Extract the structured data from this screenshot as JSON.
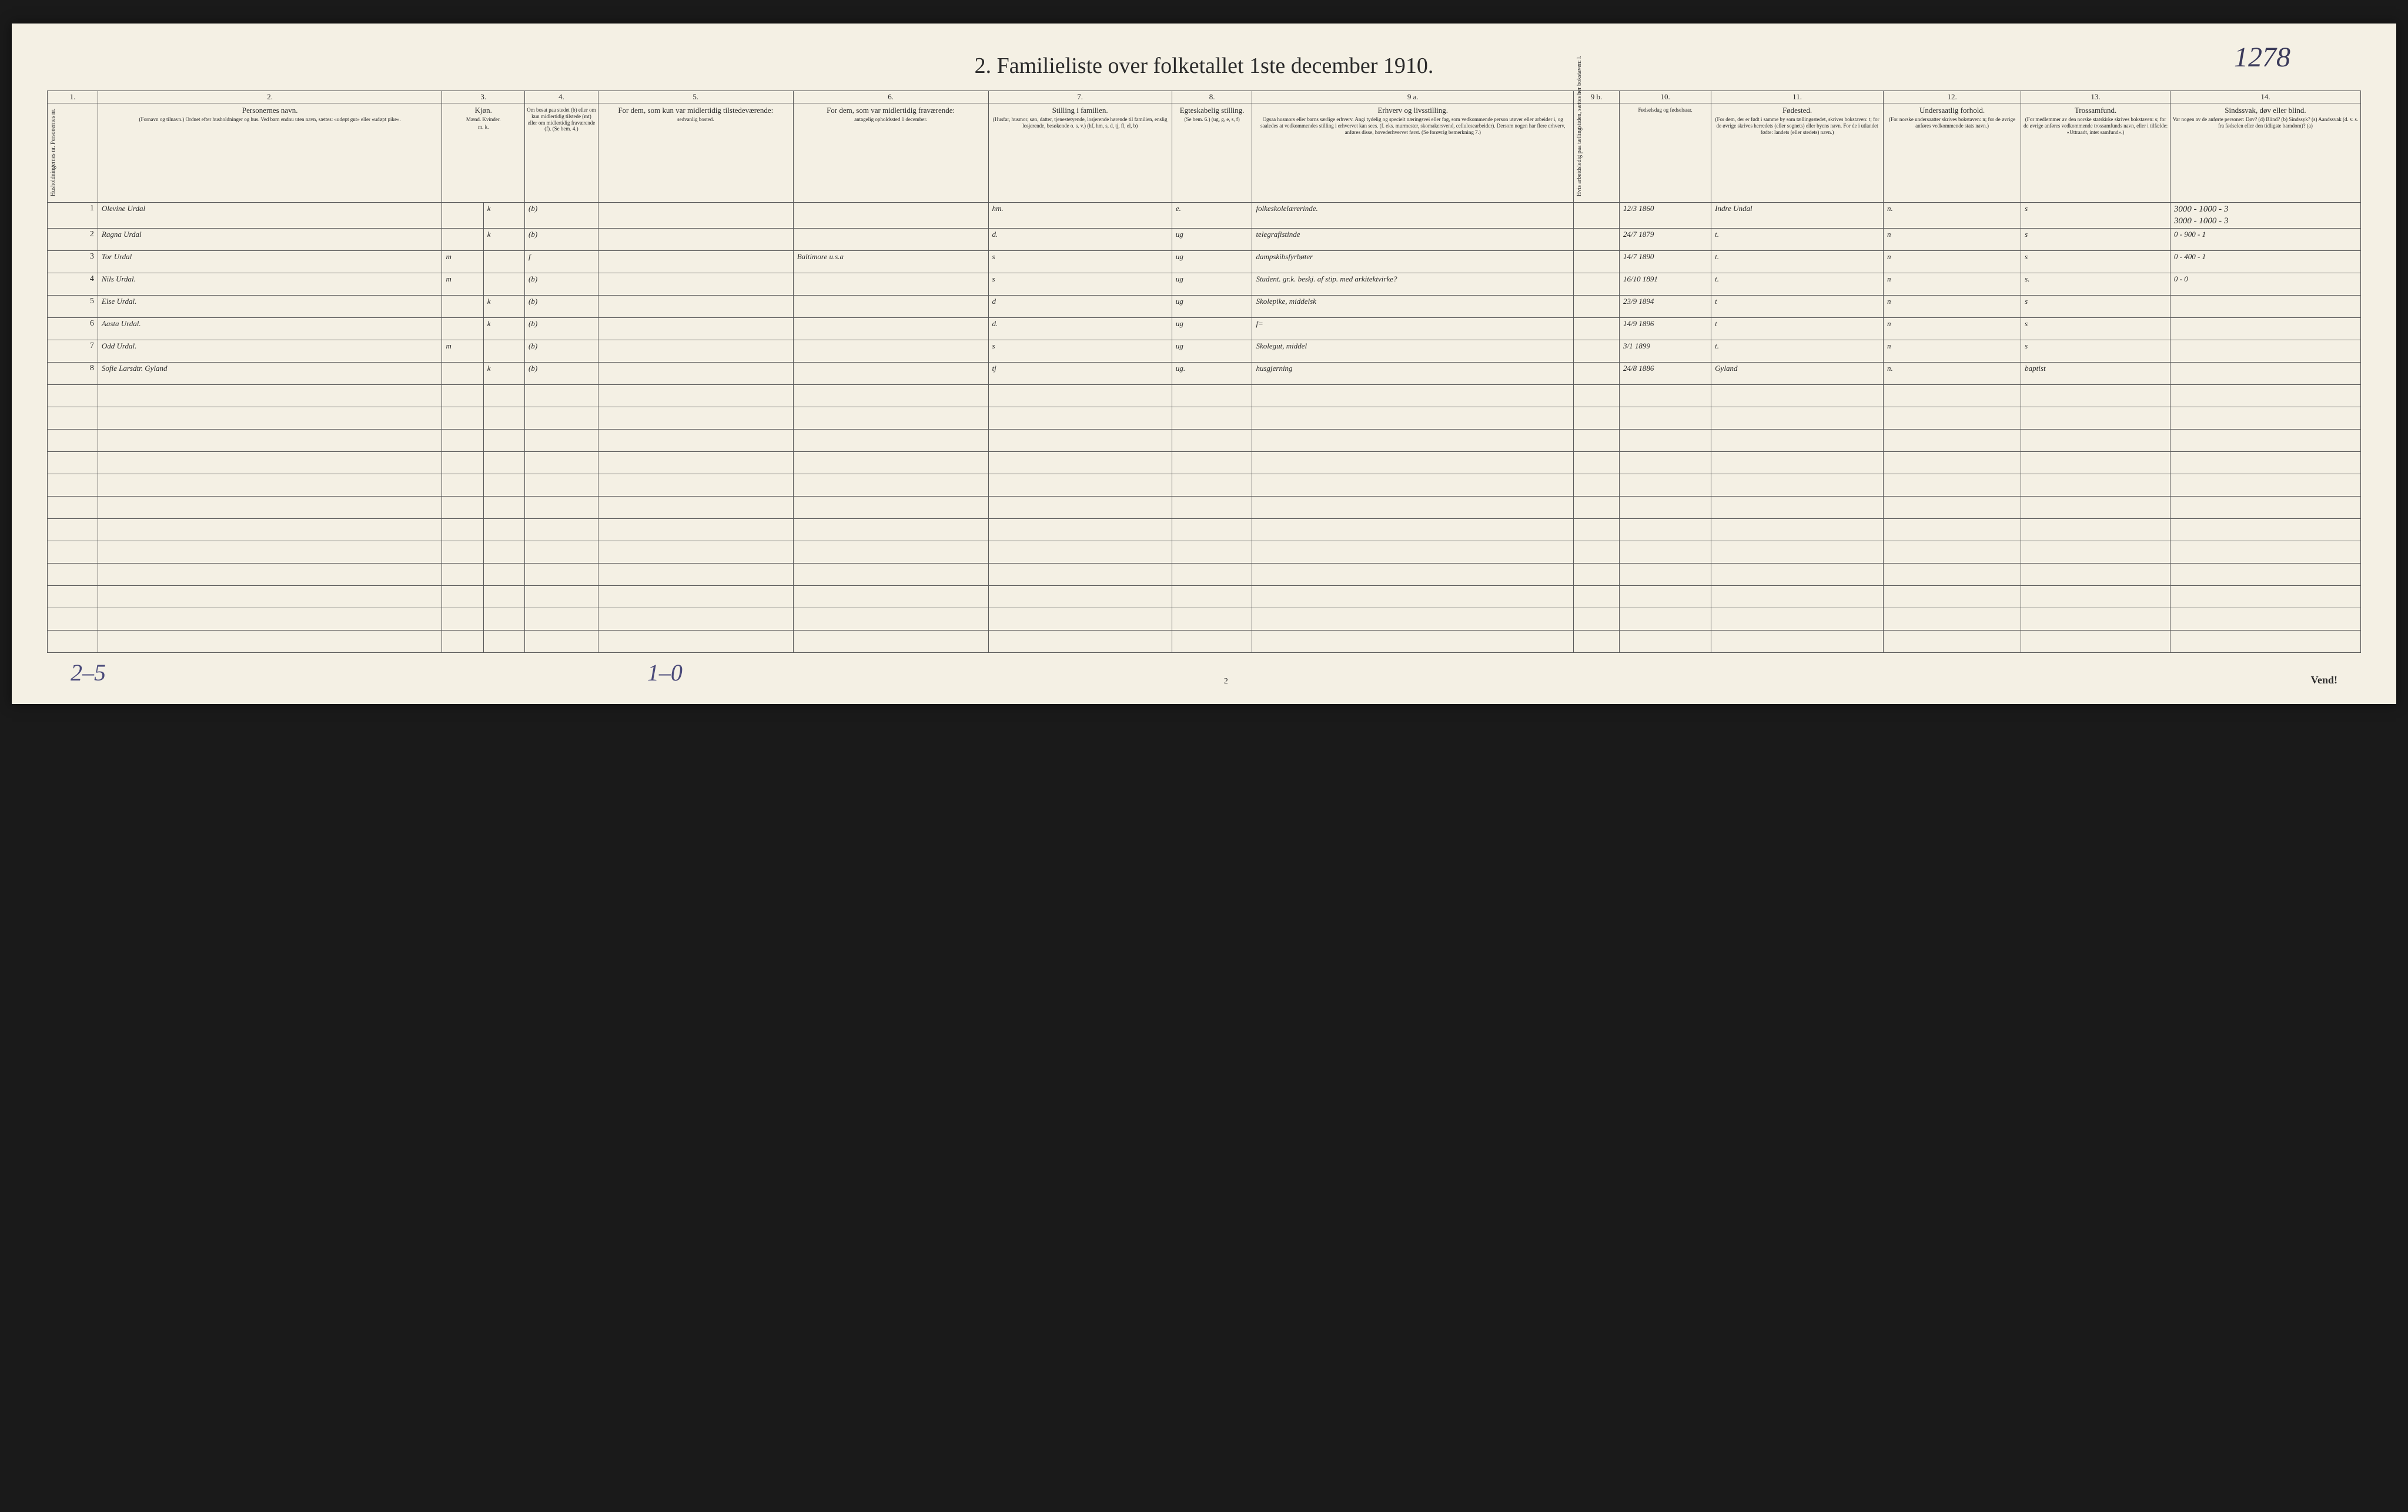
{
  "page_number_handwritten": "1278",
  "title": "2.  Familieliste over folketallet 1ste december 1910.",
  "column_numbers": [
    "1.",
    "2.",
    "3.",
    "4.",
    "5.",
    "6.",
    "7.",
    "8.",
    "9 a.",
    "9 b.",
    "10.",
    "11.",
    "12.",
    "13.",
    "14."
  ],
  "headers": {
    "c1": "Husholdningernes nr.",
    "c1b": "Personernes nr.",
    "c2": "Personernes navn.",
    "c2_sub": "(Fornavn og tilnavn.) Ordnet efter husholdninger og hus. Ved barn endnu uten navn, sættes: «udøpt gut» eller «udøpt pike».",
    "c3": "Kjøn.",
    "c3a": "Mænd.",
    "c3b": "Kvinder.",
    "c3_sub": "m.  k.",
    "c4": "Om bosat paa stedet (b) eller om kun midlertidig tilstede (mt) eller om midlertidig fraværende (f). (Se bem. 4.)",
    "c5": "For dem, som kun var midlertidig tilstedeværende:",
    "c5_sub": "sedvanlig bosted.",
    "c6": "For dem, som var midlertidig fraværende:",
    "c6_sub": "antagelig opholdssted 1 december.",
    "c7": "Stilling i familien.",
    "c7_sub": "(Husfar, husmor, søn, datter, tjenestetyende, losjerende hørende til familien, enslig losjerende, besøkende o. s. v.) (hf, hm, s, d, tj, fl, el, b)",
    "c8": "Egteskabelig stilling.",
    "c8_sub": "(Se bem. 6.) (ug, g, e, s, f)",
    "c9a": "Erhverv og livsstilling.",
    "c9a_sub": "Ogsaa husmors eller barns særlige erhverv. Angi tydelig og specielt næringsvei eller fag, som vedkommende person utøver eller arbeider i, og saaledes at vedkommendes stilling i erhvervet kan sees. (f. eks. murmester, skomakersvend, cellulosearbeider). Dersom nogen har flere erhverv, anføres disse, hovederhvervet først. (Se forøvrig bemerkning 7.)",
    "c9b": "Hvis arbeidsledig paa tællingstiden, sættes her bokstaven: l.",
    "c10": "Fødselsdag og fødselsaar.",
    "c11": "Fødested.",
    "c11_sub": "(For dem, der er født i samme by som tællingsstedet, skrives bokstaven: t; for de øvrige skrives herredets (eller sognets) eller byens navn. For de i utlandet fødte: landets (eller stedets) navn.)",
    "c12": "Undersaatlig forhold.",
    "c12_sub": "(For norske undersaatter skrives bokstaven: n; for de øvrige anføres vedkommende stats navn.)",
    "c13": "Trossamfund.",
    "c13_sub": "(For medlemmer av den norske statskirke skrives bokstaven: s; for de øvrige anføres vedkommende trossamfunds navn, eller i tilfælde: «Uttraadt, intet samfund».)",
    "c14": "Sindssvak, døv eller blind.",
    "c14_sub": "Var nogen av de anførte personer: Døv? (d) Blind? (b) Sindssyk? (s) Aandssvak (d. v. s. fra fødselen eller den tidligste barndom)? (a)"
  },
  "rows": [
    {
      "n": "1",
      "name": "Olevine Urdal",
      "sex": "k",
      "res": "(b)",
      "away": "",
      "temp": "",
      "fam": "hm.",
      "mar": "e.",
      "occ": "folkeskolelærerinde.",
      "led": "",
      "birth": "12/3 1860",
      "place": "Indre Undal",
      "nat": "n.",
      "rel": "s",
      "c14": "3000 - 1000 - 3"
    },
    {
      "n": "2",
      "name": "Ragna Urdal",
      "sex": "k",
      "res": "(b)",
      "away": "",
      "temp": "",
      "fam": "d.",
      "mar": "ug",
      "occ": "telegrafistinde",
      "led": "",
      "birth": "24/7 1879",
      "place": "t.",
      "nat": "n",
      "rel": "s",
      "c14": "0 - 900 - 1"
    },
    {
      "n": "3",
      "name": "Tor Urdal",
      "sex": "m",
      "res": "f",
      "away": "",
      "temp": "Baltimore u.s.a",
      "fam": "s",
      "mar": "ug",
      "occ": "dampskibsfyrbøter",
      "led": "",
      "birth": "14/7 1890",
      "place": "t.",
      "nat": "n",
      "rel": "s",
      "c14": "0 - 400 - 1"
    },
    {
      "n": "4",
      "name": "Nils Urdal.",
      "sex": "m",
      "res": "(b)",
      "away": "",
      "temp": "",
      "fam": "s",
      "mar": "ug",
      "occ": "Student. gr.k. beskj. af stip. med arkitektvirke?",
      "led": "",
      "birth": "16/10 1891",
      "place": "t.",
      "nat": "n",
      "rel": "s.",
      "c14": "0 - 0"
    },
    {
      "n": "5",
      "name": "Else Urdal.",
      "sex": "k",
      "res": "(b)",
      "away": "",
      "temp": "",
      "fam": "d",
      "mar": "ug",
      "occ": "Skolepike, middelsk",
      "led": "",
      "birth": "23/9 1894",
      "place": "t",
      "nat": "n",
      "rel": "s",
      "c14": ""
    },
    {
      "n": "6",
      "name": "Aasta Urdal.",
      "sex": "k",
      "res": "(b)",
      "away": "",
      "temp": "",
      "fam": "d.",
      "mar": "ug",
      "occ": "f=",
      "led": "",
      "birth": "14/9 1896",
      "place": "t",
      "nat": "n",
      "rel": "s",
      "c14": ""
    },
    {
      "n": "7",
      "name": "Odd Urdal.",
      "sex": "m",
      "res": "(b)",
      "away": "",
      "temp": "",
      "fam": "s",
      "mar": "ug",
      "occ": "Skolegut, middel",
      "led": "",
      "birth": "3/1 1899",
      "place": "t.",
      "nat": "n",
      "rel": "s",
      "c14": ""
    },
    {
      "n": "8",
      "name": "Sofie Larsdtr. Gyland",
      "sex": "k",
      "res": "(b)",
      "away": "",
      "temp": "",
      "fam": "tj",
      "mar": "ug.",
      "occ": "husgjerning",
      "led": "",
      "birth": "24/8 1886",
      "place": "Gyland",
      "nat": "n.",
      "rel": "baptist",
      "c14": ""
    }
  ],
  "marginalia_top": "3000 - 1000 - 3",
  "empty_row_count": 12,
  "footer": {
    "left": "2–5",
    "mid": "1–0",
    "page": "2",
    "vend": "Vend!"
  }
}
